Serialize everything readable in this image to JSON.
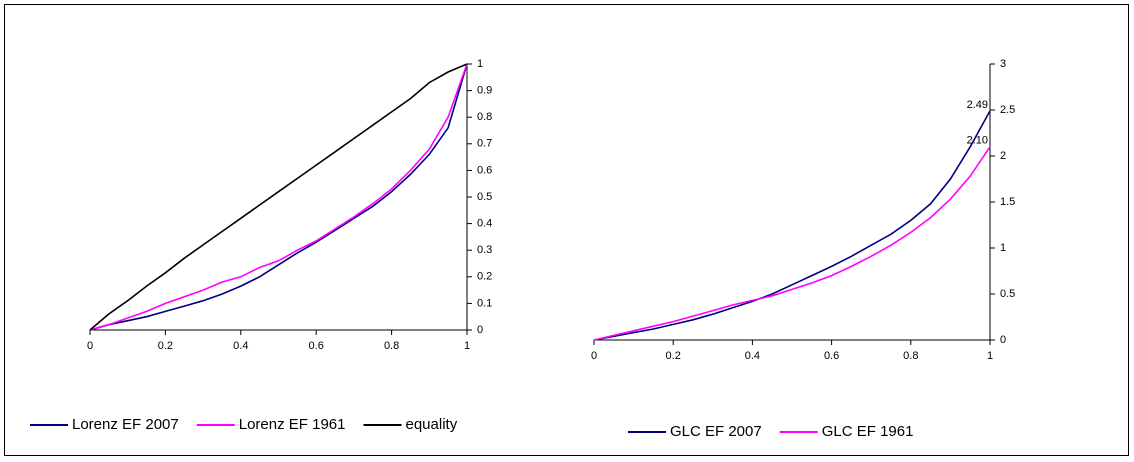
{
  "chart_data": [
    {
      "type": "line",
      "y_axis_side": "right",
      "legend": "bottom",
      "x": [
        0,
        0.05,
        0.1,
        0.15,
        0.2,
        0.25,
        0.3,
        0.35,
        0.4,
        0.45,
        0.5,
        0.55,
        0.6,
        0.65,
        0.7,
        0.75,
        0.8,
        0.85,
        0.9,
        0.95,
        1
      ],
      "xlim": [
        0,
        1
      ],
      "xticks": [
        0,
        0.2,
        0.4,
        0.6,
        0.8,
        1
      ],
      "ylim": [
        0,
        1
      ],
      "yticks": [
        0,
        0.1,
        0.2,
        0.3,
        0.4,
        0.5,
        0.6,
        0.7,
        0.8,
        0.9,
        1
      ],
      "series": [
        {
          "name": "Lorenz EF 2007",
          "color": "#000080",
          "values": [
            0,
            0.02,
            0.035,
            0.05,
            0.07,
            0.09,
            0.11,
            0.135,
            0.165,
            0.2,
            0.245,
            0.29,
            0.33,
            0.375,
            0.42,
            0.465,
            0.52,
            0.585,
            0.66,
            0.76,
            1
          ]
        },
        {
          "name": "Lorenz EF 1961",
          "color": "#ff00ff",
          "values": [
            0,
            0.02,
            0.045,
            0.07,
            0.1,
            0.125,
            0.15,
            0.18,
            0.2,
            0.235,
            0.26,
            0.3,
            0.335,
            0.38,
            0.425,
            0.475,
            0.53,
            0.6,
            0.68,
            0.8,
            1
          ]
        },
        {
          "name": "equality",
          "color": "#000000",
          "values": [
            0,
            0.06,
            0.11,
            0.165,
            0.215,
            0.27,
            0.32,
            0.37,
            0.42,
            0.47,
            0.52,
            0.57,
            0.62,
            0.67,
            0.72,
            0.77,
            0.82,
            0.87,
            0.93,
            0.97,
            1
          ]
        }
      ]
    },
    {
      "type": "line",
      "y_axis_side": "right",
      "legend": "bottom",
      "x": [
        0,
        0.05,
        0.1,
        0.15,
        0.2,
        0.25,
        0.3,
        0.35,
        0.4,
        0.45,
        0.5,
        0.55,
        0.6,
        0.65,
        0.7,
        0.75,
        0.8,
        0.85,
        0.9,
        0.95,
        1
      ],
      "xlim": [
        0,
        1
      ],
      "xticks": [
        0,
        0.2,
        0.4,
        0.6,
        0.8,
        1
      ],
      "ylim": [
        0,
        3
      ],
      "yticks": [
        0,
        0.5,
        1,
        1.5,
        2,
        2.5,
        3
      ],
      "series": [
        {
          "name": "GLC EF 2007",
          "color": "#000080",
          "values": [
            0,
            0.04,
            0.08,
            0.12,
            0.17,
            0.22,
            0.28,
            0.35,
            0.42,
            0.5,
            0.6,
            0.7,
            0.8,
            0.91,
            1.03,
            1.15,
            1.3,
            1.48,
            1.75,
            2.1,
            2.49
          ],
          "value_labels": [
            null,
            null,
            null,
            null,
            null,
            null,
            null,
            null,
            null,
            null,
            null,
            null,
            null,
            null,
            null,
            null,
            null,
            null,
            null,
            null,
            "2.49"
          ]
        },
        {
          "name": "GLC EF 1961",
          "color": "#ff00ff",
          "values": [
            0,
            0.05,
            0.1,
            0.15,
            0.2,
            0.26,
            0.32,
            0.38,
            0.43,
            0.48,
            0.55,
            0.62,
            0.7,
            0.8,
            0.91,
            1.03,
            1.17,
            1.33,
            1.53,
            1.78,
            2.1
          ],
          "value_labels": [
            null,
            null,
            null,
            null,
            null,
            null,
            null,
            null,
            null,
            null,
            null,
            null,
            null,
            null,
            null,
            null,
            null,
            null,
            null,
            null,
            "2.10"
          ]
        }
      ]
    }
  ]
}
